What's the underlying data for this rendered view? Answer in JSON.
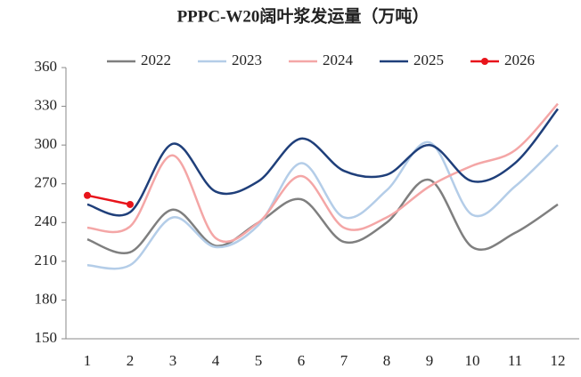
{
  "chart_data": {
    "type": "line",
    "title": "PPPC-W20阔叶浆发运量（万吨）",
    "categories": [
      "1",
      "2",
      "3",
      "4",
      "5",
      "6",
      "7",
      "8",
      "9",
      "10",
      "11",
      "12"
    ],
    "series": [
      {
        "name": "2022",
        "color": "#7f7f7f",
        "values": [
          227,
          217,
          250,
          222,
          240,
          258,
          225,
          240,
          273,
          221,
          232,
          254
        ]
      },
      {
        "name": "2023",
        "color": "#b4cde8",
        "values": [
          207,
          207,
          244,
          221,
          238,
          286,
          244,
          265,
          302,
          246,
          268,
          300
        ]
      },
      {
        "name": "2024",
        "color": "#f4a6a6",
        "values": [
          236,
          237,
          292,
          228,
          240,
          276,
          236,
          244,
          268,
          284,
          296,
          332
        ]
      },
      {
        "name": "2025",
        "color": "#1f3f7a",
        "values": [
          254,
          248,
          301,
          264,
          272,
          305,
          280,
          277,
          300,
          272,
          286,
          328
        ]
      },
      {
        "name": "2026",
        "color": "#e8141b",
        "marker": true,
        "smooth": false,
        "values": [
          261,
          254,
          null,
          null,
          null,
          null,
          null,
          null,
          null,
          null,
          null,
          null
        ]
      }
    ],
    "ylim": [
      150,
      360
    ],
    "yticks": [
      150,
      180,
      210,
      240,
      270,
      300,
      330,
      360
    ],
    "grid": false,
    "legend": "top",
    "smooth": true
  }
}
